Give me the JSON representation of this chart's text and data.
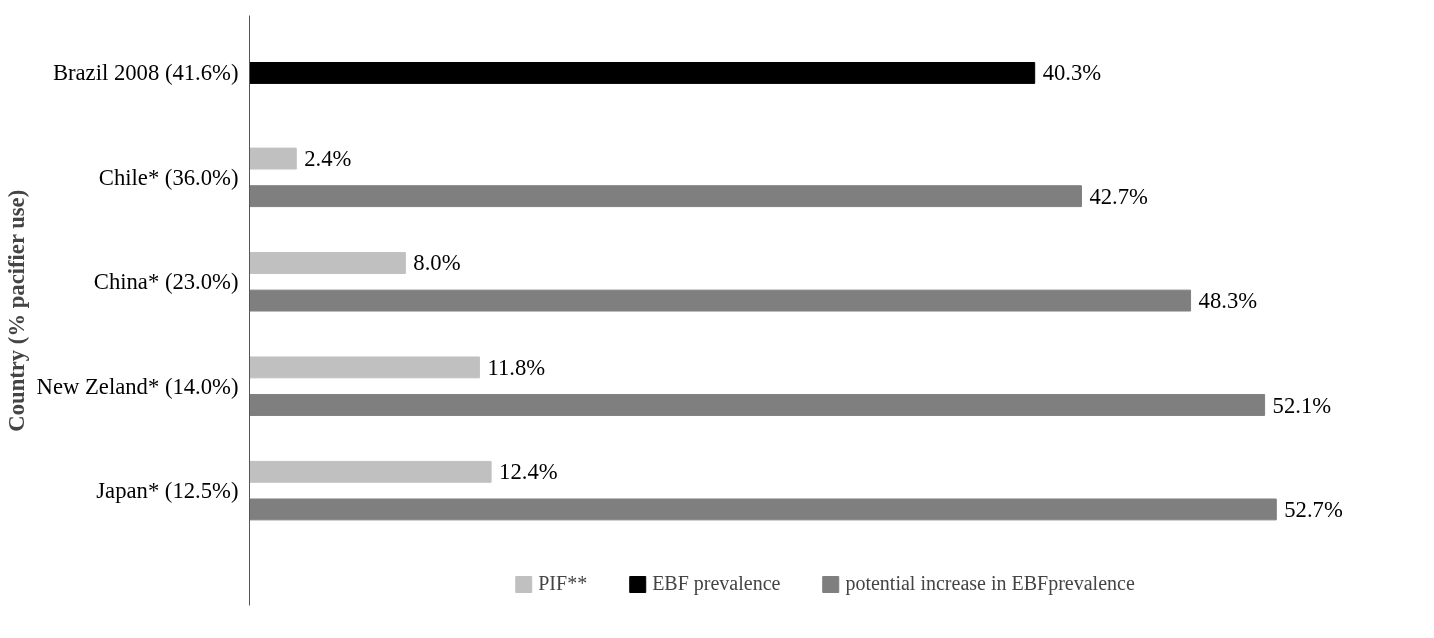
{
  "chart_data": {
    "type": "bar",
    "orientation": "horizontal",
    "ylabel": "Country (% pacifier use)",
    "categories": [
      "Brazil 2008 (41.6%)",
      "Chile* (36.0%)",
      "China* (23.0%)",
      "New Zeland* (14.0%)",
      "Japan* (12.5%)"
    ],
    "series": [
      {
        "name": "PIF**",
        "color": "#c0c0c0",
        "values": [
          null,
          2.4,
          8.0,
          11.8,
          12.4
        ],
        "value_labels": [
          null,
          "2.4%",
          "8.0%",
          "11.8%",
          "12.4%"
        ]
      },
      {
        "name": "EBF prevalence",
        "color": "#000000",
        "values": [
          40.3,
          null,
          null,
          null,
          null
        ],
        "value_labels": [
          "40.3%",
          null,
          null,
          null,
          null
        ]
      },
      {
        "name": "potential increase in EBFprevalence",
        "color": "#7f7f7f",
        "values": [
          null,
          42.7,
          48.3,
          52.1,
          52.7
        ],
        "value_labels": [
          null,
          "42.7%",
          "48.3%",
          "52.1%",
          "52.7%"
        ]
      }
    ],
    "legend": "bottom",
    "grid": false
  }
}
